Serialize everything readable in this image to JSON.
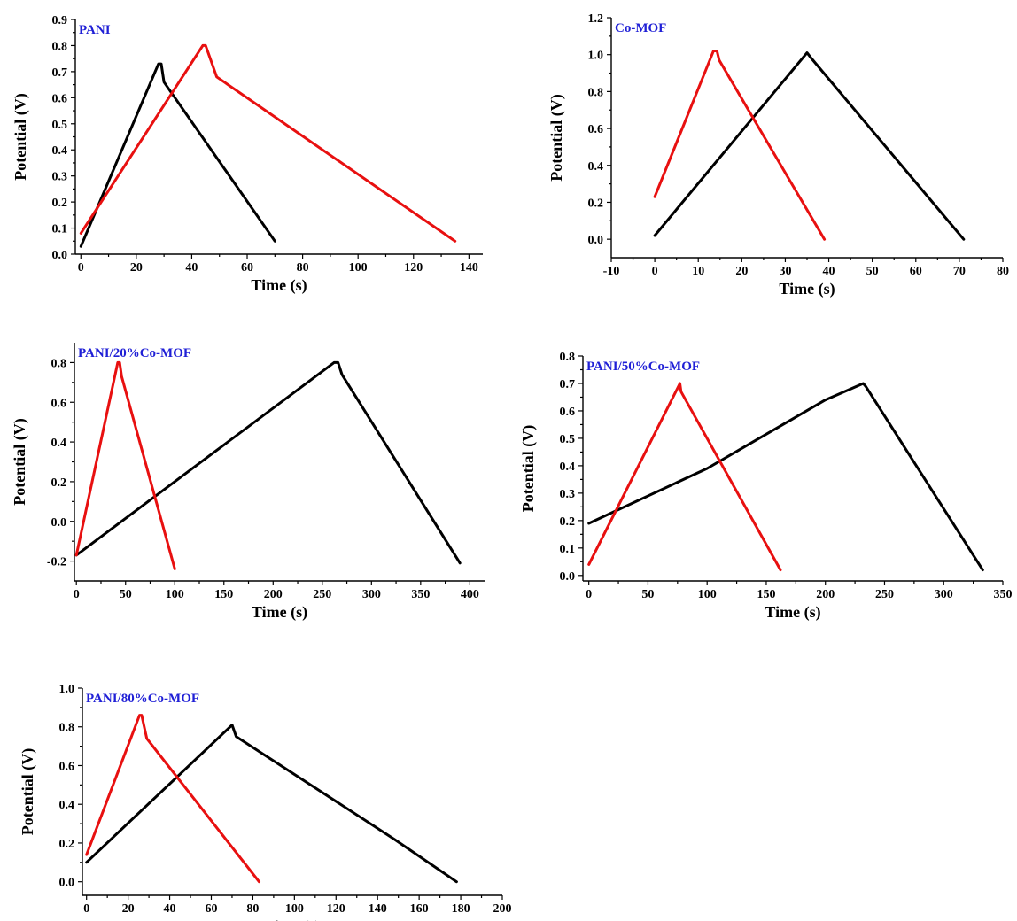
{
  "chart_data": [
    {
      "type": "line",
      "title": "PANI",
      "xlabel": "Time (s)",
      "ylabel": "Potential (V)",
      "xlim": [
        -2,
        145
      ],
      "ylim": [
        0.0,
        0.9
      ],
      "xticks": [
        0,
        20,
        40,
        60,
        80,
        100,
        120,
        140
      ],
      "yticks": [
        0.0,
        0.1,
        0.2,
        0.3,
        0.4,
        0.5,
        0.6,
        0.7,
        0.8,
        0.9
      ],
      "tick_decimals": 1,
      "grid": false,
      "series": [
        {
          "color": "#000000",
          "points": [
            [
              0,
              0.03
            ],
            [
              28,
              0.73
            ],
            [
              29,
              0.73
            ],
            [
              30,
              0.66
            ],
            [
              70,
              0.05
            ]
          ]
        },
        {
          "color": "#e81010",
          "points": [
            [
              0,
              0.08
            ],
            [
              44,
              0.8
            ],
            [
              45,
              0.8
            ],
            [
              49,
              0.68
            ],
            [
              135,
              0.05
            ]
          ]
        }
      ]
    },
    {
      "type": "line",
      "title": "Co-MOF",
      "xlabel": "Time (s)",
      "ylabel": "Potential (V)",
      "xlim": [
        -10,
        80
      ],
      "ylim": [
        -0.1,
        1.2
      ],
      "xticks": [
        -10,
        0,
        10,
        20,
        30,
        40,
        50,
        60,
        70,
        80
      ],
      "yticks": [
        0.0,
        0.2,
        0.4,
        0.6,
        0.8,
        1.0,
        1.2
      ],
      "tick_decimals": 1,
      "grid": false,
      "series": [
        {
          "color": "#000000",
          "points": [
            [
              0,
              0.02
            ],
            [
              35,
              1.01
            ],
            [
              36,
              0.98
            ],
            [
              71,
              0.0
            ]
          ]
        },
        {
          "color": "#e81010",
          "points": [
            [
              0,
              0.23
            ],
            [
              13.5,
              1.02
            ],
            [
              14.3,
              1.02
            ],
            [
              14.8,
              0.97
            ],
            [
              29,
              0.4
            ],
            [
              39,
              0.0
            ]
          ]
        }
      ]
    },
    {
      "type": "line",
      "title": "PANI/20%Co-MOF",
      "xlabel": "Time (s)",
      "ylabel": "Potential (V)",
      "xlim": [
        -2,
        415
      ],
      "ylim": [
        -0.3,
        0.9
      ],
      "xticks": [
        0,
        50,
        100,
        150,
        200,
        250,
        300,
        350,
        400
      ],
      "yticks": [
        -0.2,
        0.0,
        0.2,
        0.4,
        0.6,
        0.8
      ],
      "tick_decimals": 1,
      "grid": false,
      "series": [
        {
          "color": "#000000",
          "points": [
            [
              0,
              -0.17
            ],
            [
              262,
              0.8
            ],
            [
              266,
              0.8
            ],
            [
              270,
              0.74
            ],
            [
              390,
              -0.21
            ]
          ]
        },
        {
          "color": "#e81010",
          "points": [
            [
              0,
              -0.17
            ],
            [
              42,
              0.8
            ],
            [
              44,
              0.8
            ],
            [
              46,
              0.73
            ],
            [
              100,
              -0.24
            ]
          ]
        }
      ]
    },
    {
      "type": "line",
      "title": "PANI/50%Co-MOF",
      "xlabel": "Time (s)",
      "ylabel": "Potential (V)",
      "xlim": [
        -5,
        350
      ],
      "ylim": [
        -0.02,
        0.8
      ],
      "xticks": [
        0,
        50,
        100,
        150,
        200,
        250,
        300,
        350
      ],
      "yticks": [
        0.0,
        0.1,
        0.2,
        0.3,
        0.4,
        0.5,
        0.6,
        0.7,
        0.8
      ],
      "tick_decimals": 1,
      "grid": false,
      "series": [
        {
          "color": "#000000",
          "points": [
            [
              0,
              0.19
            ],
            [
              100,
              0.39
            ],
            [
              200,
              0.64
            ],
            [
              232,
              0.7
            ],
            [
              234,
              0.69
            ],
            [
              333,
              0.02
            ]
          ]
        },
        {
          "color": "#e81010",
          "points": [
            [
              0,
              0.04
            ],
            [
              77,
              0.7
            ],
            [
              78,
              0.67
            ],
            [
              162,
              0.02
            ]
          ]
        }
      ]
    },
    {
      "type": "line",
      "title": "PANI/80%Co-MOF",
      "xlabel": "Time (s)",
      "ylabel": "Potential (V)",
      "xlim": [
        -2,
        200
      ],
      "ylim": [
        -0.07,
        1.0
      ],
      "xticks": [
        0,
        20,
        40,
        60,
        80,
        100,
        120,
        140,
        160,
        180,
        200
      ],
      "yticks": [
        0.0,
        0.2,
        0.4,
        0.6,
        0.8,
        1.0
      ],
      "tick_decimals": 1,
      "grid": false,
      "series": [
        {
          "color": "#000000",
          "points": [
            [
              0,
              0.1
            ],
            [
              70,
              0.81
            ],
            [
              72,
              0.75
            ],
            [
              148,
              0.22
            ],
            [
              178,
              0.0
            ]
          ]
        },
        {
          "color": "#e81010",
          "points": [
            [
              0,
              0.14
            ],
            [
              25.5,
              0.86
            ],
            [
              26.5,
              0.86
            ],
            [
              29,
              0.74
            ],
            [
              83,
              0.0
            ]
          ]
        }
      ]
    }
  ]
}
